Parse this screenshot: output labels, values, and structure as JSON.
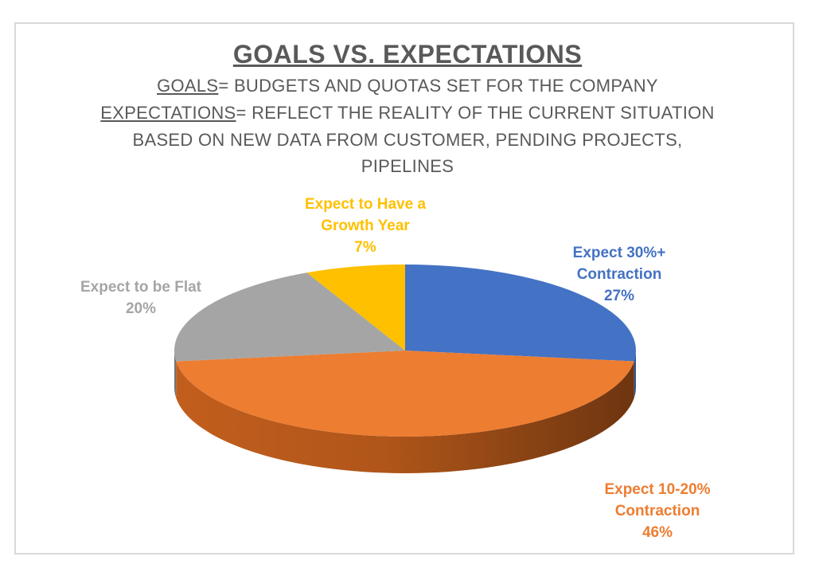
{
  "chart_data": {
    "type": "pie",
    "title": "GOALS VS. EXPECTATIONS",
    "subtitle": {
      "line1_term": "GOALS",
      "line1_rest": "= BUDGETS AND QUOTAS SET FOR THE COMPANY",
      "line2_term": "EXPECTATIONS",
      "line2_rest": "= REFLECT THE REALITY OF THE CURRENT SITUATION",
      "line3": "BASED ON NEW DATA FROM CUSTOMER, PENDING PROJECTS,",
      "line4": "PIPELINES"
    },
    "slices": [
      {
        "name": "Expect 30%+ Contraction",
        "label_lines": [
          "Expect 30%+",
          "Contraction"
        ],
        "percent_label": "27%",
        "value": 27,
        "color": "#4472C4"
      },
      {
        "name": "Expect 10-20% Contraction",
        "label_lines": [
          "Expect 10-20%",
          "Contraction"
        ],
        "percent_label": "46%",
        "value": 46,
        "color": "#ED7D31"
      },
      {
        "name": "Expect to be Flat",
        "label_lines": [
          "Expect to be Flat"
        ],
        "percent_label": "20%",
        "value": 20,
        "color": "#A5A5A5"
      },
      {
        "name": "Expect to Have a Growth Year",
        "label_lines": [
          "Expect to Have a",
          "Growth Year"
        ],
        "percent_label": "7%",
        "value": 7,
        "color": "#FFC000"
      }
    ]
  }
}
